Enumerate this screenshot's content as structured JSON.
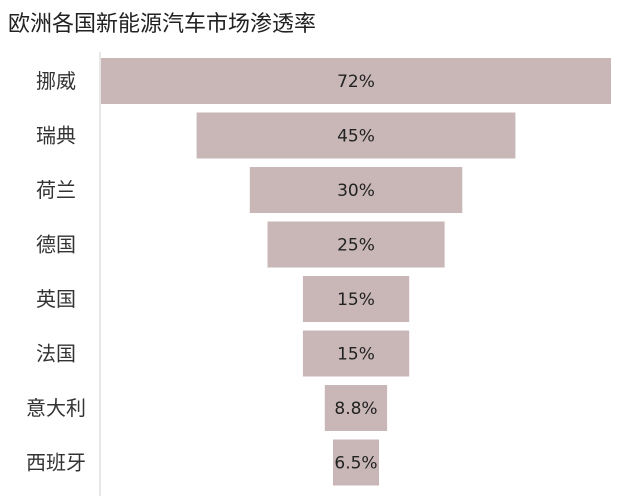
{
  "chart_data": {
    "type": "bar",
    "orientation": "horizontal-funnel",
    "title": "欧洲各国新能源汽车市场渗透率",
    "categories": [
      "挪威",
      "瑞典",
      "荷兰",
      "德国",
      "英国",
      "法国",
      "意大利",
      "西班牙"
    ],
    "values": [
      72,
      45,
      30,
      25,
      15,
      15,
      8.8,
      6.5
    ],
    "value_labels": [
      "72%",
      "45%",
      "30%",
      "25%",
      "15%",
      "15%",
      "8.8%",
      "6.5%"
    ],
    "unit": "%",
    "xlim": [
      0,
      72
    ],
    "grid": false,
    "legend": "none",
    "bar_color": "#c9b7b8",
    "axis_color": "#cfcfcf"
  }
}
